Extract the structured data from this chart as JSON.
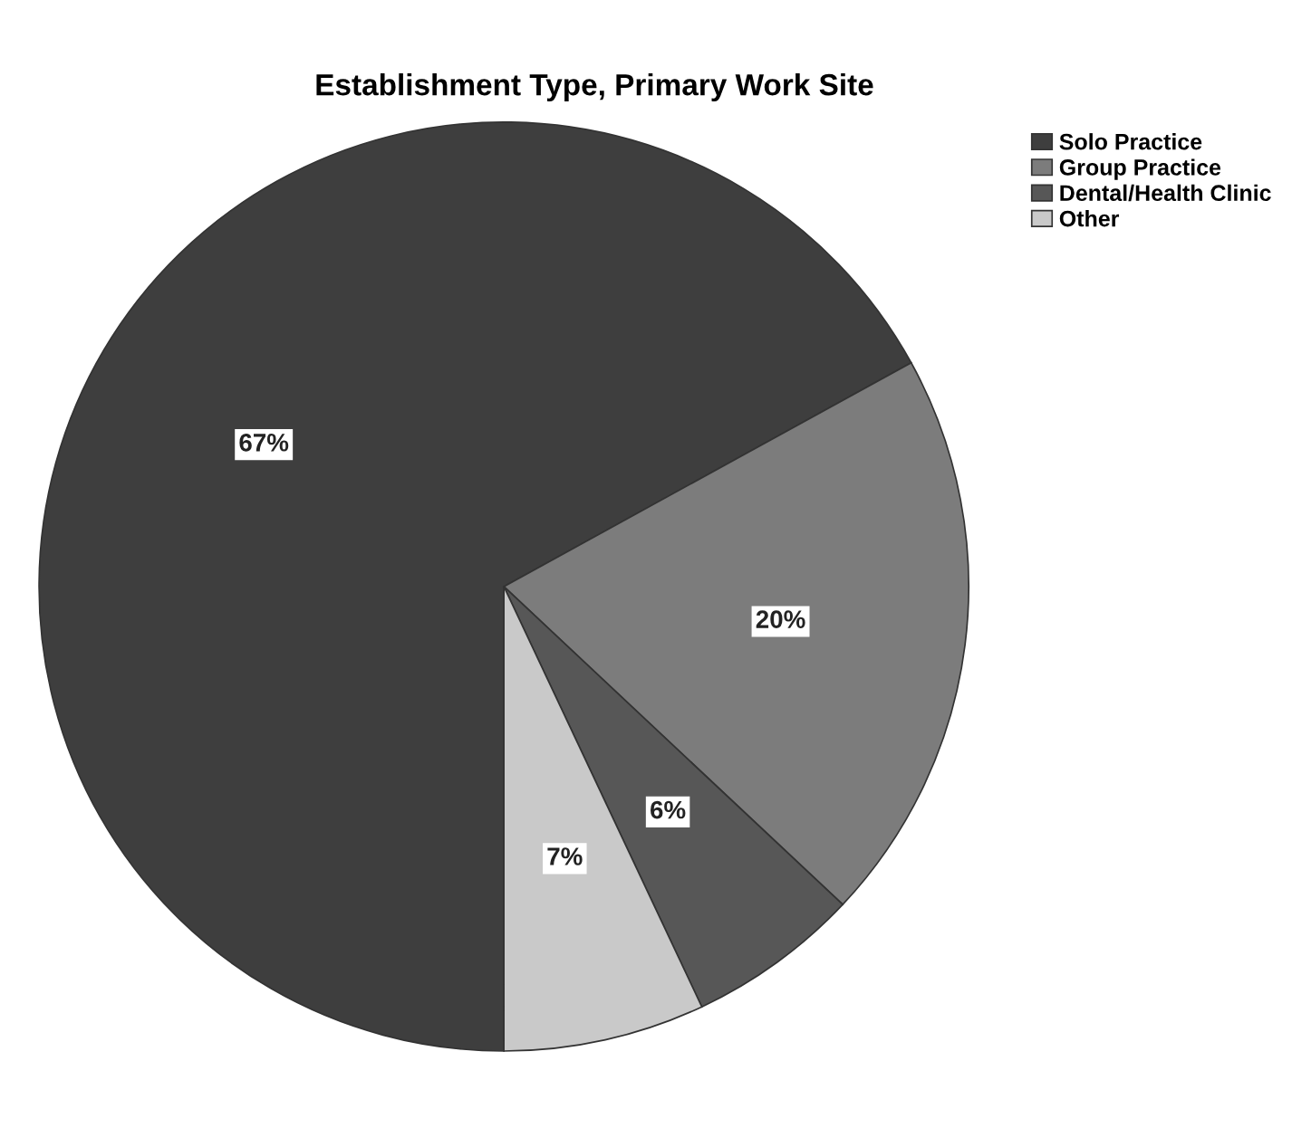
{
  "chart_data": {
    "type": "pie",
    "title": "Establishment Type, Primary Work Site",
    "categories": [
      "Solo Practice",
      "Group Practice",
      "Dental/Health Clinic",
      "Other"
    ],
    "values": [
      67,
      20,
      6,
      7
    ],
    "colors": [
      "#3e3e3e",
      "#7c7c7c",
      "#575757",
      "#c9c9c9"
    ],
    "value_labels": [
      "67%",
      "20%",
      "6%",
      "7%"
    ],
    "legend": "top right"
  }
}
